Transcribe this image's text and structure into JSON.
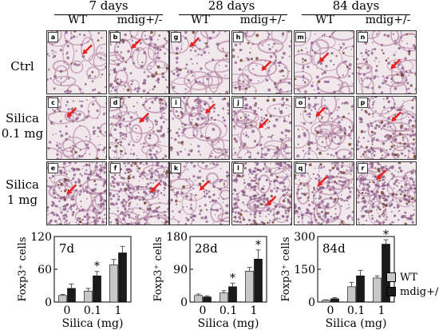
{
  "columns": [
    {
      "label": "7 days",
      "sub": [
        "WT",
        "mdig+/-"
      ]
    },
    {
      "label": "28 days",
      "sub": [
        "WT",
        "mdig+/-"
      ]
    },
    {
      "label": "84 days",
      "sub": [
        "WT",
        "mdig+/-"
      ]
    }
  ],
  "rows": [
    {
      "label": "Ctrl"
    },
    {
      "label": "Silica\n0.1 mg"
    },
    {
      "label": "Silica\n1 mg"
    }
  ],
  "panels": [
    "a",
    "b",
    "g",
    "h",
    "m",
    "n",
    "c",
    "d",
    "i",
    "j",
    "o",
    "p",
    "e",
    "f",
    "k",
    "l",
    "q",
    "r"
  ],
  "legend": [
    {
      "label": "WT",
      "color": "#c8c8c8"
    },
    {
      "label": "mdig+/-",
      "color": "#1a1a1a"
    }
  ],
  "colors": {
    "wt": "#c8c8c8",
    "mdig": "#1a1a1a",
    "arrow": "#e8201e"
  },
  "chart_data": [
    {
      "type": "bar",
      "title": "7d",
      "xlabel": "Silica (mg)",
      "ylabel": "Foxp3⁺ cells",
      "categories": [
        "0",
        "0.1",
        "1"
      ],
      "ylim": [
        0,
        120
      ],
      "yticks": [
        0,
        60,
        120
      ],
      "series": [
        {
          "name": "WT",
          "values": [
            12,
            20,
            68
          ],
          "errors": [
            2,
            5,
            10
          ]
        },
        {
          "name": "mdig+/-",
          "values": [
            25,
            48,
            90
          ],
          "errors": [
            8,
            8,
            12
          ]
        }
      ],
      "significance": [
        "",
        "*",
        ""
      ]
    },
    {
      "type": "bar",
      "title": "28d",
      "xlabel": "Silica (mg)",
      "ylabel": "Foxp3⁺ cells",
      "categories": [
        "0",
        "0.1",
        "1"
      ],
      "ylim": [
        0,
        180
      ],
      "yticks": [
        0,
        90,
        180
      ],
      "series": [
        {
          "name": "WT",
          "values": [
            18,
            25,
            85
          ],
          "errors": [
            4,
            6,
            10
          ]
        },
        {
          "name": "mdig+/-",
          "values": [
            14,
            42,
            118
          ],
          "errors": [
            3,
            10,
            25
          ]
        }
      ],
      "significance": [
        "",
        "*",
        "*"
      ]
    },
    {
      "type": "bar",
      "title": "84d",
      "xlabel": "Silica (mg)",
      "ylabel": "Foxp3⁺ cells",
      "categories": [
        "0",
        "0.1",
        "1"
      ],
      "ylim": [
        0,
        300
      ],
      "yticks": [
        0,
        150,
        300
      ],
      "series": [
        {
          "name": "WT",
          "values": [
            8,
            70,
            110
          ],
          "errors": [
            2,
            20,
            10
          ]
        },
        {
          "name": "mdig+/-",
          "values": [
            15,
            120,
            265
          ],
          "errors": [
            5,
            25,
            20
          ]
        }
      ],
      "significance": [
        "",
        "",
        "*"
      ]
    }
  ]
}
